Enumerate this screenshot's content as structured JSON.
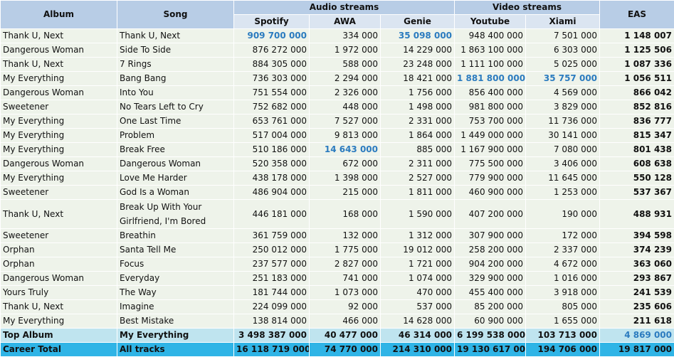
{
  "headers": {
    "album": "Album",
    "song": "Song",
    "audio_group": "Audio streams",
    "video_group": "Video streams",
    "eas": "EAS",
    "spotify": "Spotify",
    "awa": "AWA",
    "genie": "Genie",
    "youtube": "Youtube",
    "xiami": "Xiami"
  },
  "rows": [
    {
      "album": "Thank U, Next",
      "song": "Thank U, Next",
      "spotify": "909 700 000",
      "awa": "334 000",
      "genie": "35 098 000",
      "youtube": "948 400 000",
      "xiami": "7 501 000",
      "eas": "1 148 007"
    },
    {
      "album": "Dangerous Woman",
      "song": "Side To Side",
      "spotify": "876 272 000",
      "awa": "1 972 000",
      "genie": "14 229 000",
      "youtube": "1 863 100 000",
      "xiami": "6 303 000",
      "eas": "1 125 506"
    },
    {
      "album": "Thank U, Next",
      "song": "7 Rings",
      "spotify": "884 305 000",
      "awa": "588 000",
      "genie": "23 248 000",
      "youtube": "1 111 100 000",
      "xiami": "5 025 000",
      "eas": "1 087 336"
    },
    {
      "album": "My Everything",
      "song": "Bang Bang",
      "spotify": "736 303 000",
      "awa": "2 294 000",
      "genie": "18 421 000",
      "youtube": "1 881 800 000",
      "xiami": "35 757 000",
      "eas": "1 056 511"
    },
    {
      "album": "Dangerous Woman",
      "song": "Into You",
      "spotify": "751 554 000",
      "awa": "2 326 000",
      "genie": "1 756 000",
      "youtube": "856 400 000",
      "xiami": "4 569 000",
      "eas": "866 042"
    },
    {
      "album": "Sweetener",
      "song": "No Tears Left to Cry",
      "spotify": "752 682 000",
      "awa": "448 000",
      "genie": "1 498 000",
      "youtube": "981 800 000",
      "xiami": "3 829 000",
      "eas": "852 816"
    },
    {
      "album": "My Everything",
      "song": "One Last Time",
      "spotify": "653 761 000",
      "awa": "7 527 000",
      "genie": "2 331 000",
      "youtube": "753 700 000",
      "xiami": "11 736 000",
      "eas": "836 777"
    },
    {
      "album": "My Everything",
      "song": "Problem",
      "spotify": "517 004 000",
      "awa": "9 813 000",
      "genie": "1 864 000",
      "youtube": "1 449 000 000",
      "xiami": "30 141 000",
      "eas": "815 347"
    },
    {
      "album": "My Everything",
      "song": "Break Free",
      "spotify": "510 186 000",
      "awa": "14 643 000",
      "genie": "885 000",
      "youtube": "1 167 900 000",
      "xiami": "7 080 000",
      "eas": "801 438"
    },
    {
      "album": "Dangerous Woman",
      "song": "Dangerous Woman",
      "spotify": "520 358 000",
      "awa": "672 000",
      "genie": "2 311 000",
      "youtube": "775 500 000",
      "xiami": "3 406 000",
      "eas": "608 638"
    },
    {
      "album": "My Everything",
      "song": "Love Me Harder",
      "spotify": "438 178 000",
      "awa": "1 398 000",
      "genie": "2 527 000",
      "youtube": "779 900 000",
      "xiami": "11 645 000",
      "eas": "550 128"
    },
    {
      "album": "Sweetener",
      "song": "God Is a Woman",
      "spotify": "486 904 000",
      "awa": "215 000",
      "genie": "1 811 000",
      "youtube": "460 900 000",
      "xiami": "1 253 000",
      "eas": "537 367"
    },
    {
      "album": "Thank U, Next",
      "song": "Break Up With Your Girlfriend, I'm Bored",
      "spotify": "446 181 000",
      "awa": "168 000",
      "genie": "1 590 000",
      "youtube": "407 200 000",
      "xiami": "190 000",
      "eas": "488 931"
    },
    {
      "album": "Sweetener",
      "song": "Breathin",
      "spotify": "361 759 000",
      "awa": "132 000",
      "genie": "1 312 000",
      "youtube": "307 900 000",
      "xiami": "172 000",
      "eas": "394 598"
    },
    {
      "album": "Orphan",
      "song": "Santa Tell Me",
      "spotify": "250 012 000",
      "awa": "1 775 000",
      "genie": "19 012 000",
      "youtube": "258 200 000",
      "xiami": "2 337 000",
      "eas": "374 239"
    },
    {
      "album": "Orphan",
      "song": "Focus",
      "spotify": "237 577 000",
      "awa": "2 827 000",
      "genie": "1 721 000",
      "youtube": "904 200 000",
      "xiami": "4 672 000",
      "eas": "363 060"
    },
    {
      "album": "Dangerous Woman",
      "song": "Everyday",
      "spotify": "251 183 000",
      "awa": "741 000",
      "genie": "1 074 000",
      "youtube": "329 900 000",
      "xiami": "1 016 000",
      "eas": "293 867"
    },
    {
      "album": "Yours Truly",
      "song": "The Way",
      "spotify": "181 744 000",
      "awa": "1 073 000",
      "genie": "470 000",
      "youtube": "455 400 000",
      "xiami": "3 918 000",
      "eas": "241 539"
    },
    {
      "album": "Thank U, Next",
      "song": "Imagine",
      "spotify": "224 099 000",
      "awa": "92 000",
      "genie": "537 000",
      "youtube": "85 200 000",
      "xiami": "805 000",
      "eas": "235 606"
    },
    {
      "album": "My Everything",
      "song": "Best Mistake",
      "spotify": "138 814 000",
      "awa": "466 000",
      "genie": "14 628 000",
      "youtube": "60 900 000",
      "xiami": "1 655 000",
      "eas": "211 618"
    }
  ],
  "top_album": {
    "label": "Top Album",
    "song": "My Everything",
    "spotify": "3 498 387 000",
    "awa": "40 477 000",
    "genie": "46 314 000",
    "youtube": "6 199 538 000",
    "xiami": "103 713 000",
    "eas": "4 869 000"
  },
  "career_total": {
    "label": "Career Total",
    "song": "All tracks",
    "spotify": "16 118 719 000",
    "awa": "74 770 000",
    "genie": "214 310 000",
    "youtube": "19 130 617 000",
    "xiami": "194 706 000",
    "eas": "19 817 000"
  },
  "highlight_color": "#2b7bbf"
}
